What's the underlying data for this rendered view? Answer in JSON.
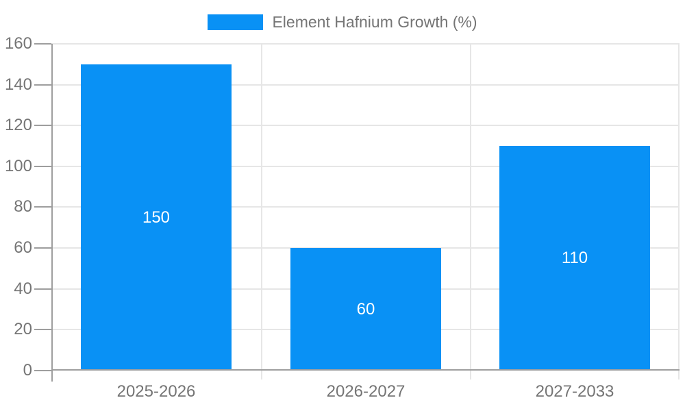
{
  "chart_data": {
    "type": "bar",
    "title": "",
    "legend": {
      "label": "Element Hafnium Growth (%)",
      "position": "top"
    },
    "categories": [
      "2025-2026",
      "2026-2027",
      "2027-2033"
    ],
    "series": [
      {
        "name": "Element Hafnium Growth (%)",
        "values": [
          150,
          60,
          110
        ]
      }
    ],
    "data_labels": [
      "150",
      "60",
      "110"
    ],
    "xlabel": "",
    "ylabel": "",
    "ylim": [
      0,
      160
    ],
    "yticks": [
      0,
      20,
      40,
      60,
      80,
      100,
      120,
      140,
      160
    ],
    "grid": true
  },
  "colors": {
    "bar": "#0991f5",
    "grid": "#e6e6e6",
    "axis": "#9e9e9e",
    "tick_label": "#757575",
    "legend_text": "#757575",
    "data_label": "#ffffff",
    "background": "#ffffff"
  }
}
